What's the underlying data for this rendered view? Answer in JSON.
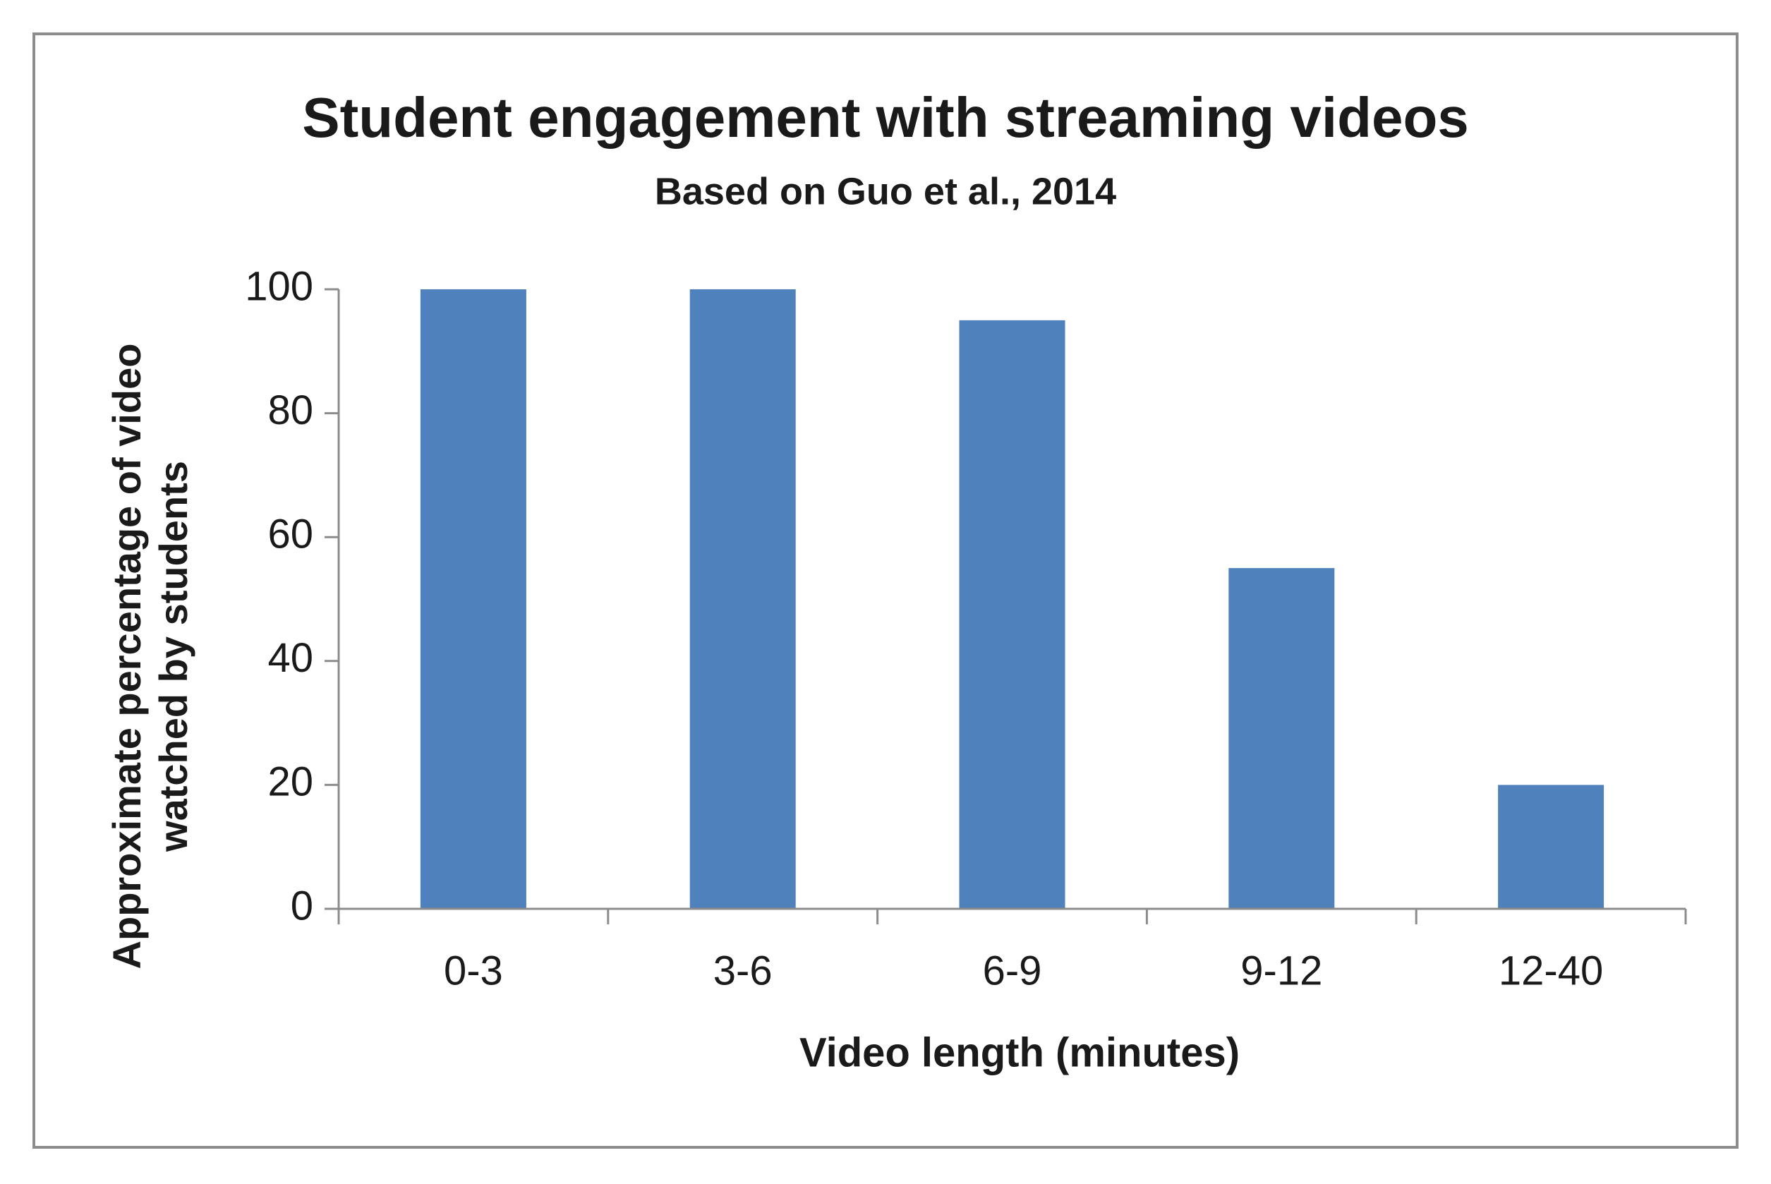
{
  "chart_data": {
    "type": "bar",
    "title": "Student engagement with streaming videos",
    "subtitle": "Based on Guo et al., 2014",
    "xlabel": "Video length (minutes)",
    "ylabel": [
      "Approximate percentage of video",
      "watched by students"
    ],
    "categories": [
      "0-3",
      "3-6",
      "6-9",
      "9-12",
      "12-40"
    ],
    "values": [
      100,
      100,
      95,
      55,
      20
    ],
    "color": "#4f81bd",
    "ylim": [
      0,
      100
    ],
    "yticks": [
      0,
      20,
      40,
      60,
      80,
      100
    ],
    "grid": false
  }
}
